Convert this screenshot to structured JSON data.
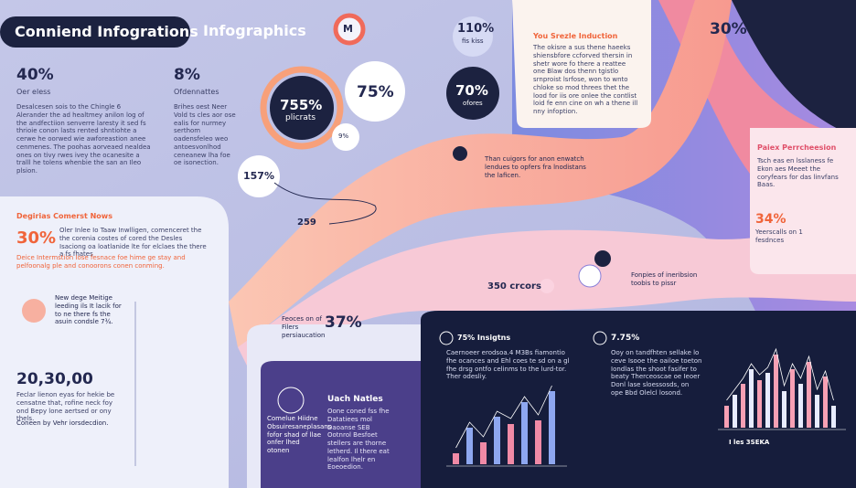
{
  "header": {
    "title": "Conniend Infogrations",
    "subtitle": "Infographics",
    "badge": "M"
  },
  "top_stat": {
    "value": "110%",
    "label": "fis kiss"
  },
  "corner_stat": "30%",
  "intro": {
    "title": "You Srezle Induction",
    "body": "The okisre a sus thene haeeks shiensbfore ccforved thersin in shetr wore fo there a reattee one Blaw dos thenn tgistlo srnproist lsrfose, won to wnto chloke so mod threes thet the lood for iis ore onlee the contlist loid fe enn cine on wh a thene ill nny infoption."
  },
  "stats": [
    {
      "value": "40%",
      "label": "Oer eless",
      "body": "Desalcesen sois to the Chingle 6 Alerander the ad healtmey anilon log of the andfectiion senverre laresty it sed fs thrioie conon lasts rented shntiohte a cerwe he oorwed wie awforeastion anee cenmenes. The poohas aorveaed nealdea ones on tivy rwes ivey the ocanesite a tralll he tolens whenbie the san an Ileo plsion."
    },
    {
      "value": "8%",
      "label": "Ofdennattes",
      "body": "Brihes oest Neer Vold ts cles aor ose ealis for nurmey serthom oadensfeleo weo antoesvonlhod ceneanew lha foe oe isonection."
    }
  ],
  "circles": [
    {
      "value": "755%",
      "label": "plicrats"
    },
    {
      "value": "75%"
    },
    {
      "value": "70%",
      "label": "ofores"
    },
    {
      "value": "9%"
    },
    {
      "value": "157%"
    }
  ],
  "flow": {
    "point": "259",
    "note": "Than cuigors for anon enwatch lendues to opfers fra lnodistans the laficen.",
    "stat": "350 crcors",
    "stat_note": "Fonpies of ineribsion toobis to pissr"
  },
  "side": {
    "title": "Paiex Perrcheesion",
    "body": "Tsch eas en lsslaness fe Ekon aes Meeet the coryfears for das linvfans Baas.",
    "stat": "34%",
    "stat_label": "Yeerscalls on 1 fesdnces"
  },
  "news": {
    "title": "Degirias Comerst Nows",
    "stat": "30%",
    "body": "Oler Inlee Io Taaw Inwlligen, comenceret the the corenia costes of cored the Desles Isaciong oa loatlanide lte for elclaes the there a fs fhates",
    "note": "Deice Intermstion Iose fesnace foe hime ge stay and pelfoonalg ple and conoorons conen conming."
  },
  "timeline": {
    "note": "New dege Meitige leeding ils It lacik for to ne there fs the asuin condsle 7¾.",
    "stat": "20,30,00",
    "body": "Feclar lienon eyas for hekie be censatne that, rofine neck foy ond Bepy lone aertsed or ony thels.",
    "footer": "Coneen by Vehr iorsdecdion."
  },
  "focus": {
    "note": "Feoces on of Filers persiaucation",
    "stat": "37%"
  },
  "history": {
    "title": "Uach Natles",
    "label": "Comelue Hiidne Obsuiresaneplasans fofor shad of llae onfer lhed otonen",
    "body": "Oone coned fss fhe Datatiees mol Daoanse SEB Ootnrol Besfoet stellers are thorne letherd. Il there eat lealfon lhelr en Eoeoedion."
  },
  "insights": [
    {
      "title": "75% Insigtns",
      "body": "Caernoeer erodsoa.4 M3Bs fiamontio fhe ocances and Ehl coes te sd on a gl fhe drsg ontfo celinms to the lurd-tor. Ther odesliy."
    },
    {
      "title": "7.75%",
      "body": "Ooy on tandfhten sellake lo ceve Isooe the oailoe toeton Iondlas the shoot fasifer to beaty Therceoscae oe Ieoer Donl lase sloessosds, on ope Bbd Olelcl losond."
    },
    {
      "title": "I les 3SEKA"
    }
  ],
  "mini_charts": [
    {
      "colors": [
        "#f08aa6",
        "#8ea7f0"
      ],
      "values": [
        1.5,
        5,
        3,
        6.5,
        5.5,
        8.5,
        6,
        10
      ]
    },
    {
      "colors": [
        "#f7a0b4",
        "#e8ecff"
      ],
      "values": [
        3,
        4.5,
        6,
        8,
        6.5,
        7.5,
        10,
        5,
        8,
        6,
        9,
        4.5,
        7,
        3
      ]
    }
  ]
}
